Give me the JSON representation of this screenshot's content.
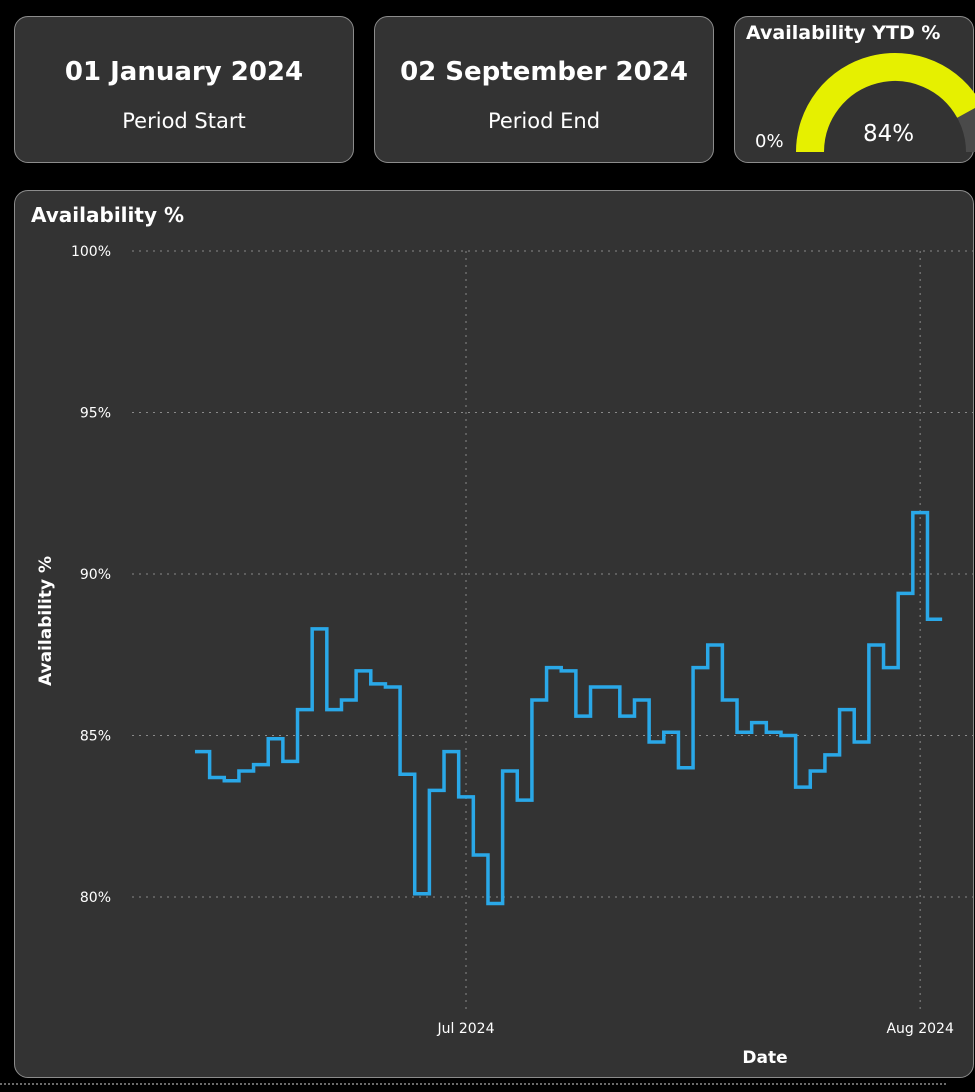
{
  "cards": {
    "period_start": {
      "value": "01 January 2024",
      "label": "Period Start"
    },
    "period_end": {
      "value": "02 September 2024",
      "label": "Period End"
    }
  },
  "gauge": {
    "title": "Availability YTD %",
    "min_label": "0%",
    "value_label": "84%",
    "value": 84,
    "min": 0,
    "max": 100,
    "color": "#e6f000",
    "track_color": "#4a4a4a"
  },
  "chart_data": {
    "type": "line",
    "title": "Availability %",
    "xlabel": "Date",
    "ylabel": "Availability %",
    "line_shape": "step",
    "color": "#2aa8e8",
    "ylim": [
      76,
      100
    ],
    "y_ticks": [
      "100%",
      "95%",
      "90%",
      "85%",
      "80%"
    ],
    "y_tick_values": [
      100,
      95,
      90,
      85,
      80
    ],
    "x_ticks": [
      "Jul 2024",
      "Aug 2024"
    ],
    "x_tick_dates": [
      "2024-07-01",
      "2024-08-01"
    ],
    "grid": true,
    "series": [
      {
        "x": [
          "2024-06-13",
          "2024-06-14",
          "2024-06-15",
          "2024-06-16",
          "2024-06-17",
          "2024-06-18",
          "2024-06-19",
          "2024-06-20",
          "2024-06-21",
          "2024-06-22",
          "2024-06-23",
          "2024-06-24",
          "2024-06-25",
          "2024-06-26",
          "2024-06-27",
          "2024-06-28",
          "2024-06-29",
          "2024-06-30",
          "2024-07-01",
          "2024-07-02",
          "2024-07-03",
          "2024-07-04",
          "2024-07-05",
          "2024-07-06",
          "2024-07-07",
          "2024-07-08",
          "2024-07-09",
          "2024-07-10",
          "2024-07-11",
          "2024-07-12",
          "2024-07-13",
          "2024-07-14",
          "2024-07-15",
          "2024-07-16",
          "2024-07-17",
          "2024-07-18",
          "2024-07-19",
          "2024-07-20",
          "2024-07-21",
          "2024-07-22",
          "2024-07-23",
          "2024-07-24",
          "2024-07-25",
          "2024-07-26",
          "2024-07-27",
          "2024-07-28",
          "2024-07-29",
          "2024-07-30",
          "2024-07-31",
          "2024-08-01",
          "2024-08-02"
        ],
        "y": [
          84.5,
          83.7,
          83.6,
          83.9,
          84.1,
          84.9,
          84.2,
          85.8,
          88.3,
          85.8,
          86.1,
          87.0,
          86.6,
          86.5,
          83.8,
          80.1,
          83.3,
          84.5,
          83.1,
          81.3,
          79.8,
          83.9,
          83.0,
          86.1,
          87.1,
          87.0,
          85.6,
          86.5,
          86.5,
          85.6,
          86.1,
          84.8,
          85.1,
          84.0,
          87.1,
          87.8,
          86.1,
          85.1,
          85.4,
          85.1,
          85.0,
          83.4,
          83.9,
          84.4,
          85.8,
          84.8,
          87.8,
          87.1,
          89.4,
          91.9,
          88.6
        ]
      }
    ]
  }
}
